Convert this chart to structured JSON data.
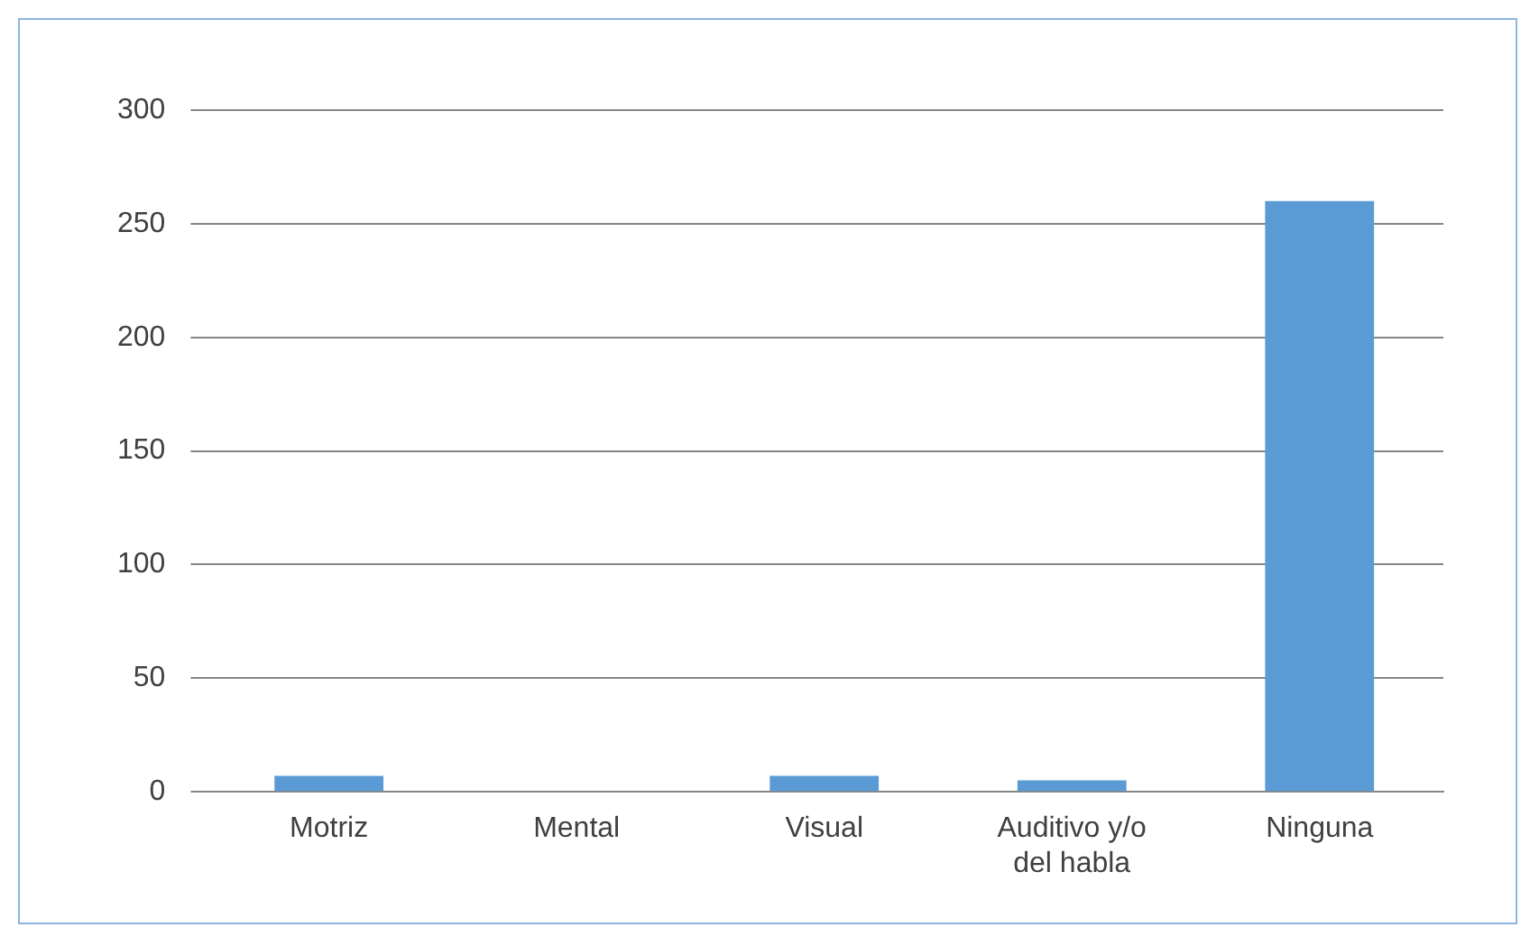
{
  "chart_data": {
    "type": "bar",
    "categories": [
      "Motriz",
      "Mental",
      "Visual",
      "Auditivo y/o del habla",
      "Ninguna"
    ],
    "values": [
      7,
      0,
      7,
      5,
      260
    ],
    "color": "#5b9bd5",
    "ylim": [
      0,
      300
    ],
    "yticks": [
      0,
      50,
      100,
      150,
      200,
      250,
      300
    ],
    "grid": "y"
  }
}
